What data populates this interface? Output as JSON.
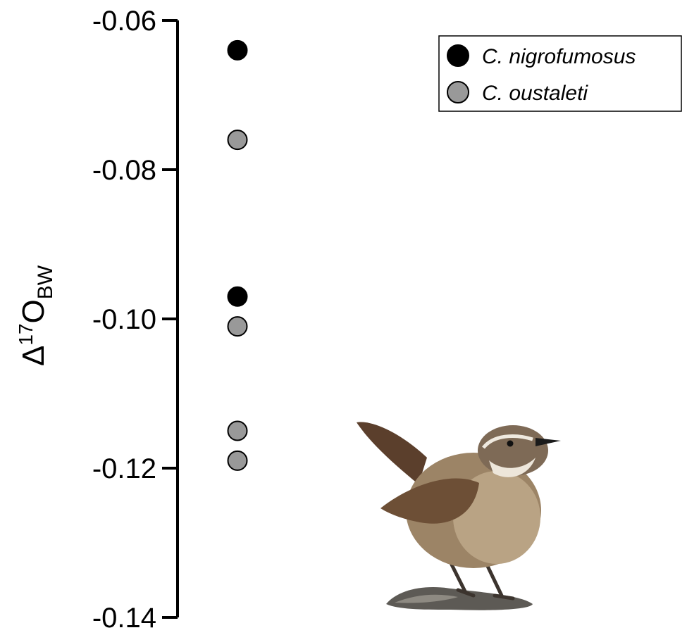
{
  "chart_data": {
    "type": "scatter",
    "title": "",
    "xlabel": "",
    "ylabel": {
      "symbol": "Δ",
      "superscript": "17",
      "main": "O",
      "subscript": "BW"
    },
    "ylim": [
      -0.14,
      -0.06
    ],
    "yticks": [
      "-0.06",
      "-0.08",
      "-0.10",
      "-0.12",
      "-0.14"
    ],
    "ytick_values": [
      -0.06,
      -0.08,
      -0.1,
      -0.12,
      -0.14
    ],
    "grid": false,
    "legend_position": "top-right",
    "series": [
      {
        "name": "C. nigrofumosus",
        "color": "#000000",
        "values": [
          -0.064,
          -0.097
        ]
      },
      {
        "name": "C. oustaleti",
        "color": "#999999",
        "values": [
          -0.076,
          -0.101,
          -0.115,
          -0.119
        ]
      }
    ],
    "illustration": "bird-photo"
  }
}
